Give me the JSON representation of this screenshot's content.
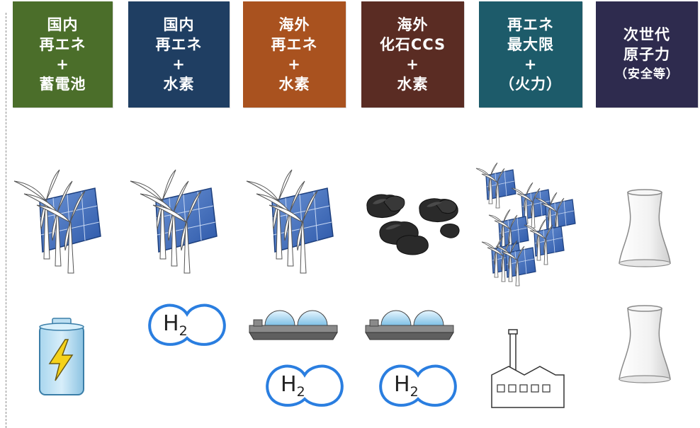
{
  "columns": [
    {
      "lines": [
        "国内",
        "再エネ",
        "+",
        "蓄電池"
      ],
      "color": "#4b6e2a"
    },
    {
      "lines": [
        "国内",
        "再エネ",
        "+",
        "水素"
      ],
      "color": "#1f3e62"
    },
    {
      "lines": [
        "海外",
        "再エネ",
        "+",
        "水素"
      ],
      "color": "#a9521f"
    },
    {
      "lines": [
        "海外",
        "化石CCS",
        "+",
        "水素"
      ],
      "color": "#5a2c23"
    },
    {
      "lines": [
        "再エネ",
        "最大限",
        "+",
        "（火力）"
      ],
      "color": "#1d5b6a"
    },
    {
      "lines": [
        "次世代",
        "原子力",
        "（安全等）"
      ],
      "color": "#2e2b4e"
    }
  ],
  "h2": {
    "symbol": "H",
    "subscript": "2"
  }
}
